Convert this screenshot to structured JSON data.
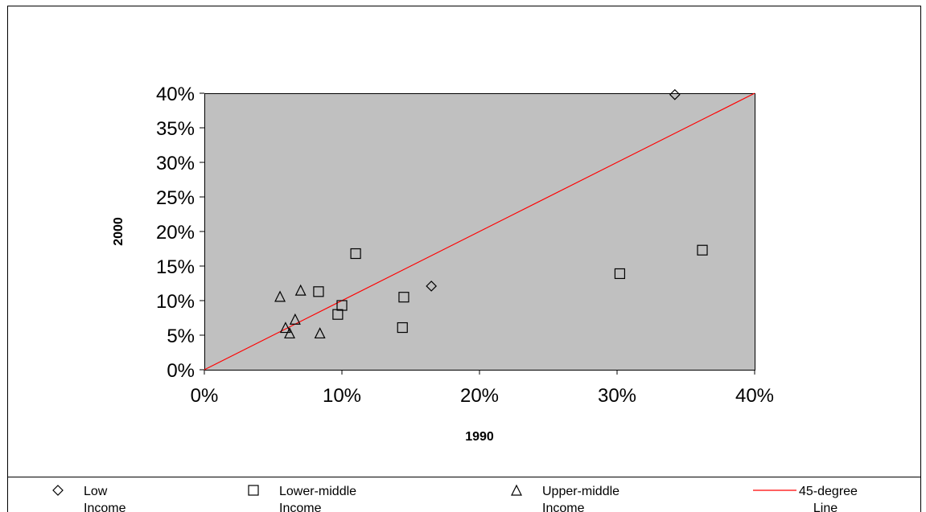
{
  "chart_data": {
    "type": "scatter",
    "xlabel": "1990",
    "ylabel": "2000",
    "xlim": [
      0,
      0.4
    ],
    "ylim": [
      0,
      0.4
    ],
    "x_ticks": [
      "0%",
      "10%",
      "20%",
      "30%",
      "40%"
    ],
    "y_ticks": [
      "0%",
      "5%",
      "10%",
      "15%",
      "20%",
      "25%",
      "30%",
      "35%",
      "40%"
    ],
    "grid": false,
    "legend_position": "bottom",
    "plot_background": "#c0c0c0",
    "series": [
      {
        "name": "Low Income",
        "marker": "diamond",
        "points": [
          {
            "x": 0.342,
            "y": 0.398
          },
          {
            "x": 0.165,
            "y": 0.121
          }
        ]
      },
      {
        "name": "Lower-middle Income",
        "marker": "square",
        "points": [
          {
            "x": 0.11,
            "y": 0.168
          },
          {
            "x": 0.083,
            "y": 0.113
          },
          {
            "x": 0.1,
            "y": 0.093
          },
          {
            "x": 0.097,
            "y": 0.08
          },
          {
            "x": 0.145,
            "y": 0.105
          },
          {
            "x": 0.144,
            "y": 0.061
          },
          {
            "x": 0.302,
            "y": 0.139
          },
          {
            "x": 0.362,
            "y": 0.173
          }
        ]
      },
      {
        "name": "Upper-middle Income",
        "marker": "triangle",
        "points": [
          {
            "x": 0.055,
            "y": 0.106
          },
          {
            "x": 0.07,
            "y": 0.115
          },
          {
            "x": 0.059,
            "y": 0.061
          },
          {
            "x": 0.066,
            "y": 0.073
          },
          {
            "x": 0.062,
            "y": 0.053
          },
          {
            "x": 0.084,
            "y": 0.053
          }
        ]
      },
      {
        "name": "45-degree Line",
        "marker": "line",
        "color": "#ff0000",
        "points": [
          {
            "x": 0.0,
            "y": 0.0
          },
          {
            "x": 0.4,
            "y": 0.4
          }
        ]
      }
    ]
  },
  "legend": {
    "items": [
      {
        "line1": "Low",
        "line2": "Income",
        "symbol": "diamond"
      },
      {
        "line1": "Lower-middle",
        "line2": "Income",
        "symbol": "square"
      },
      {
        "line1": "Upper-middle",
        "line2": "Income",
        "symbol": "triangle"
      },
      {
        "line1": "45-degree",
        "line2": "Line",
        "symbol": "line"
      }
    ]
  }
}
